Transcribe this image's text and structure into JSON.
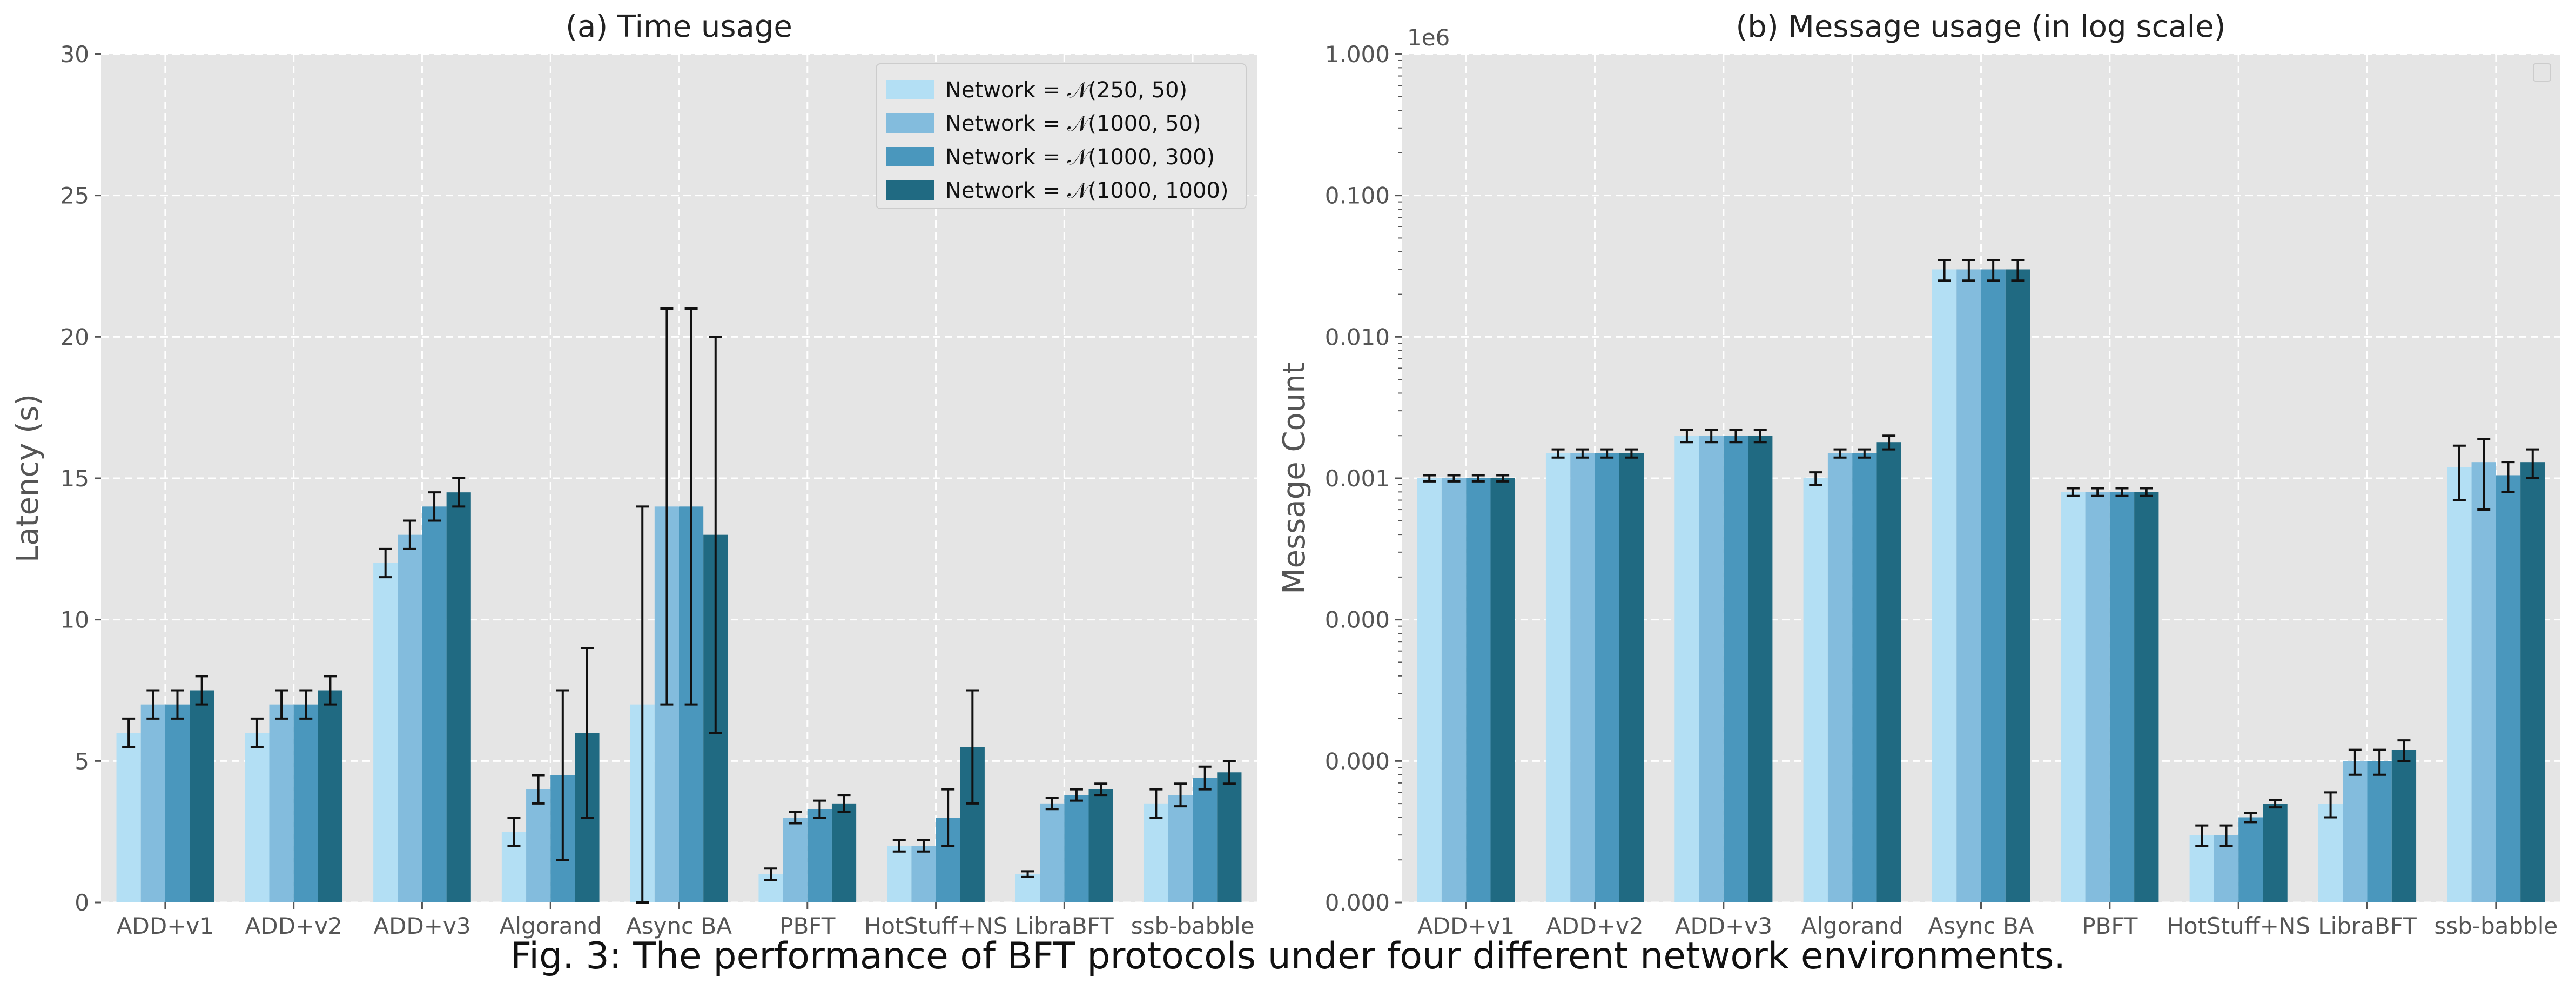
{
  "caption": "Fig. 3: The performance of BFT protocols under four different network environments.",
  "colors": {
    "panel_bg": "#e5e5e5",
    "grid": "#ffffff",
    "series": [
      "#b3dff4",
      "#83bcdd",
      "#4a97bd",
      "#206a82"
    ],
    "error_bar": "#111111",
    "tick_text": "#555555"
  },
  "chart_data": [
    {
      "type": "bar",
      "title": "(a) Time usage",
      "xlabel": "",
      "ylabel": "Latency (s)",
      "ylim": [
        0,
        30
      ],
      "yticks": [
        0,
        5,
        10,
        15,
        20,
        25,
        30
      ],
      "ytick_labels": [
        "0",
        "5",
        "10",
        "15",
        "20",
        "25",
        "30"
      ],
      "grid": true,
      "legend": {
        "placement": "top-right",
        "entries": [
          "Network = 𝒩(250, 50)",
          "Network = 𝒩(1000, 50)",
          "Network = 𝒩(1000, 300)",
          "Network = 𝒩(1000, 1000)"
        ]
      },
      "categories": [
        "ADD+v1",
        "ADD+v2",
        "ADD+v3",
        "Algorand",
        "Async BA",
        "PBFT",
        "HotStuff+NS",
        "LibraBFT",
        "ssb-babble"
      ],
      "series": [
        {
          "name": "Network = 𝒩(250, 50)",
          "values": [
            6.0,
            6.0,
            12.0,
            2.5,
            7.0,
            1.0,
            2.0,
            1.0,
            3.5
          ],
          "err": [
            [
              5.5,
              6.5
            ],
            [
              5.5,
              6.5
            ],
            [
              11.5,
              12.5
            ],
            [
              2.0,
              3.0
            ],
            [
              0,
              14.0
            ],
            [
              0.8,
              1.2
            ],
            [
              1.8,
              2.2
            ],
            [
              0.9,
              1.1
            ],
            [
              3.0,
              4.0
            ]
          ]
        },
        {
          "name": "Network = 𝒩(1000, 50)",
          "values": [
            7.0,
            7.0,
            13.0,
            4.0,
            14.0,
            3.0,
            2.0,
            3.5,
            3.8
          ],
          "err": [
            [
              6.5,
              7.5
            ],
            [
              6.5,
              7.5
            ],
            [
              12.5,
              13.5
            ],
            [
              3.5,
              4.5
            ],
            [
              7.0,
              21.0
            ],
            [
              2.8,
              3.2
            ],
            [
              1.8,
              2.2
            ],
            [
              3.3,
              3.7
            ],
            [
              3.4,
              4.2
            ]
          ]
        },
        {
          "name": "Network = 𝒩(1000, 300)",
          "values": [
            7.0,
            7.0,
            14.0,
            4.5,
            14.0,
            3.3,
            3.0,
            3.8,
            4.4
          ],
          "err": [
            [
              6.5,
              7.5
            ],
            [
              6.5,
              7.5
            ],
            [
              13.5,
              14.5
            ],
            [
              1.5,
              7.5
            ],
            [
              7.0,
              21.0
            ],
            [
              3.0,
              3.6
            ],
            [
              2.0,
              4.0
            ],
            [
              3.6,
              4.0
            ],
            [
              4.0,
              4.8
            ]
          ]
        },
        {
          "name": "Network = 𝒩(1000, 1000)",
          "values": [
            7.5,
            7.5,
            14.5,
            6.0,
            13.0,
            3.5,
            5.5,
            4.0,
            4.6
          ],
          "err": [
            [
              7.0,
              8.0
            ],
            [
              7.0,
              8.0
            ],
            [
              14.0,
              15.0
            ],
            [
              3.0,
              9.0
            ],
            [
              6.0,
              20.0
            ],
            [
              3.2,
              3.8
            ],
            [
              3.5,
              7.5
            ],
            [
              3.8,
              4.2
            ],
            [
              4.2,
              5.0
            ]
          ]
        }
      ]
    },
    {
      "type": "bar",
      "title": "(b) Message usage (in log scale)",
      "xlabel": "",
      "ylabel": "Message Count",
      "scale": "log",
      "offset_label": "1e6",
      "ylim": [
        1e-06,
        1.0
      ],
      "yticks": [
        1e-06,
        1e-05,
        0.0001,
        0.001,
        0.01,
        0.1,
        1.0
      ],
      "ytick_labels": [
        "0.000",
        "0.000",
        "0.000",
        "0.001",
        "0.010",
        "0.100",
        "1.000"
      ],
      "grid": true,
      "legend": {
        "placement": "top-right",
        "entries": []
      },
      "categories": [
        "ADD+v1",
        "ADD+v2",
        "ADD+v3",
        "Algorand",
        "Async BA",
        "PBFT",
        "HotStuff+NS",
        "LibraBFT",
        "ssb-babble"
      ],
      "series": [
        {
          "name": "Network = 𝒩(250, 50)",
          "values": [
            0.001,
            0.0015,
            0.002,
            0.001,
            0.03,
            0.0008,
            3e-06,
            5e-06,
            0.0012
          ],
          "err": [
            [
              0.00095,
              0.00105
            ],
            [
              0.0014,
              0.0016
            ],
            [
              0.0018,
              0.0022
            ],
            [
              0.0009,
              0.0011
            ],
            [
              0.025,
              0.035
            ],
            [
              0.00075,
              0.00085
            ],
            [
              2.5e-06,
              3.5e-06
            ],
            [
              4e-06,
              6e-06
            ],
            [
              0.0007,
              0.0017
            ]
          ]
        },
        {
          "name": "Network = 𝒩(1000, 50)",
          "values": [
            0.001,
            0.0015,
            0.002,
            0.0015,
            0.03,
            0.0008,
            3e-06,
            1e-05,
            0.0013
          ],
          "err": [
            [
              0.00095,
              0.00105
            ],
            [
              0.0014,
              0.0016
            ],
            [
              0.0018,
              0.0022
            ],
            [
              0.0014,
              0.0016
            ],
            [
              0.025,
              0.035
            ],
            [
              0.00075,
              0.00085
            ],
            [
              2.5e-06,
              3.5e-06
            ],
            [
              8e-06,
              1.2e-05
            ],
            [
              0.0006,
              0.0019
            ]
          ]
        },
        {
          "name": "Network = 𝒩(1000, 300)",
          "values": [
            0.001,
            0.0015,
            0.002,
            0.0015,
            0.03,
            0.0008,
            4e-06,
            1e-05,
            0.00105
          ],
          "err": [
            [
              0.00095,
              0.00105
            ],
            [
              0.0014,
              0.0016
            ],
            [
              0.0018,
              0.0022
            ],
            [
              0.0014,
              0.0016
            ],
            [
              0.025,
              0.035
            ],
            [
              0.00075,
              0.00085
            ],
            [
              3.7e-06,
              4.3e-06
            ],
            [
              8e-06,
              1.2e-05
            ],
            [
              0.0008,
              0.0013
            ]
          ]
        },
        {
          "name": "Network = 𝒩(1000, 1000)",
          "values": [
            0.001,
            0.0015,
            0.002,
            0.0018,
            0.03,
            0.0008,
            5e-06,
            1.2e-05,
            0.0013
          ],
          "err": [
            [
              0.00095,
              0.00105
            ],
            [
              0.0014,
              0.0016
            ],
            [
              0.0018,
              0.0022
            ],
            [
              0.0016,
              0.002
            ],
            [
              0.025,
              0.035
            ],
            [
              0.00075,
              0.00085
            ],
            [
              4.7e-06,
              5.3e-06
            ],
            [
              1e-05,
              1.4e-05
            ],
            [
              0.001,
              0.0016
            ]
          ]
        }
      ]
    }
  ]
}
